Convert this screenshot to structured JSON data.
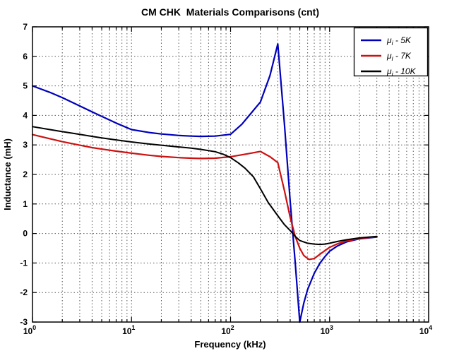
{
  "title": "CM CHK  Materials Comparisons (cnt)",
  "x_axis": {
    "label": "Frequency (kHz)",
    "scale": "log",
    "tick_exponents": [
      0,
      1,
      2,
      3,
      4
    ],
    "tick_base": "10"
  },
  "y_axis": {
    "label": "Inductance (mH)",
    "ticks": [
      -3,
      -2,
      -1,
      0,
      1,
      2,
      3,
      4,
      5,
      6,
      7
    ]
  },
  "legend": {
    "entries": [
      {
        "symbol": "μ",
        "subscript": "i",
        "suffix": " - 5K",
        "color": "#0000BB"
      },
      {
        "symbol": "μ",
        "subscript": "i",
        "suffix": " - 7K",
        "color": "#CC1111"
      },
      {
        "symbol": "μ",
        "subscript": "i",
        "suffix": " - 10K",
        "color": "#000000"
      }
    ]
  },
  "chart_data": {
    "type": "line",
    "title": "CM CHK  Materials Comparisons (cnt)",
    "xlabel": "Frequency (kHz)",
    "ylabel": "Inductance (mH)",
    "xscale": "log",
    "xlim": [
      1,
      10000
    ],
    "ylim": [
      -3,
      7
    ],
    "grid": true,
    "grid_style": "dotted",
    "legend_position": "top-right",
    "series": [
      {
        "name": "mu_i - 5K",
        "color": "#0000BB",
        "points": [
          [
            1,
            5.0
          ],
          [
            1.5,
            4.78
          ],
          [
            2,
            4.6
          ],
          [
            3,
            4.32
          ],
          [
            4,
            4.12
          ],
          [
            5,
            3.97
          ],
          [
            7,
            3.74
          ],
          [
            10,
            3.52
          ],
          [
            15,
            3.42
          ],
          [
            20,
            3.37
          ],
          [
            30,
            3.32
          ],
          [
            40,
            3.3
          ],
          [
            50,
            3.29
          ],
          [
            70,
            3.3
          ],
          [
            100,
            3.36
          ],
          [
            130,
            3.7
          ],
          [
            150,
            3.95
          ],
          [
            200,
            4.45
          ],
          [
            250,
            5.35
          ],
          [
            300,
            6.42
          ],
          [
            350,
            3.7
          ],
          [
            400,
            1.1
          ],
          [
            450,
            -1.0
          ],
          [
            500,
            -3.0
          ],
          [
            550,
            -2.35
          ],
          [
            600,
            -1.9
          ],
          [
            700,
            -1.35
          ],
          [
            800,
            -1.0
          ],
          [
            900,
            -0.78
          ],
          [
            1000,
            -0.6
          ],
          [
            1200,
            -0.42
          ],
          [
            1500,
            -0.28
          ],
          [
            2000,
            -0.18
          ],
          [
            3000,
            -0.12
          ]
        ]
      },
      {
        "name": "mu_i - 7K",
        "color": "#CC1111",
        "points": [
          [
            1,
            3.35
          ],
          [
            1.5,
            3.21
          ],
          [
            2,
            3.11
          ],
          [
            3,
            2.99
          ],
          [
            4,
            2.91
          ],
          [
            5,
            2.86
          ],
          [
            7,
            2.79
          ],
          [
            10,
            2.72
          ],
          [
            15,
            2.65
          ],
          [
            20,
            2.61
          ],
          [
            30,
            2.57
          ],
          [
            40,
            2.55
          ],
          [
            50,
            2.54
          ],
          [
            70,
            2.55
          ],
          [
            100,
            2.6
          ],
          [
            150,
            2.7
          ],
          [
            200,
            2.78
          ],
          [
            250,
            2.6
          ],
          [
            300,
            2.4
          ],
          [
            350,
            1.45
          ],
          [
            400,
            0.55
          ],
          [
            450,
            -0.1
          ],
          [
            500,
            -0.5
          ],
          [
            550,
            -0.75
          ],
          [
            620,
            -0.88
          ],
          [
            700,
            -0.85
          ],
          [
            800,
            -0.7
          ],
          [
            1000,
            -0.47
          ],
          [
            1200,
            -0.35
          ],
          [
            1500,
            -0.25
          ],
          [
            2000,
            -0.17
          ],
          [
            3000,
            -0.11
          ]
        ]
      },
      {
        "name": "mu_i - 10K",
        "color": "#000000",
        "points": [
          [
            1,
            3.62
          ],
          [
            1.5,
            3.52
          ],
          [
            2,
            3.45
          ],
          [
            3,
            3.36
          ],
          [
            4,
            3.29
          ],
          [
            5,
            3.24
          ],
          [
            7,
            3.17
          ],
          [
            10,
            3.1
          ],
          [
            15,
            3.03
          ],
          [
            20,
            2.99
          ],
          [
            30,
            2.93
          ],
          [
            40,
            2.89
          ],
          [
            50,
            2.85
          ],
          [
            70,
            2.77
          ],
          [
            85,
            2.68
          ],
          [
            100,
            2.57
          ],
          [
            120,
            2.39
          ],
          [
            140,
            2.21
          ],
          [
            170,
            1.92
          ],
          [
            200,
            1.52
          ],
          [
            240,
            1.05
          ],
          [
            300,
            0.6
          ],
          [
            350,
            0.3
          ],
          [
            400,
            0.1
          ],
          [
            450,
            -0.1
          ],
          [
            500,
            -0.24
          ],
          [
            600,
            -0.33
          ],
          [
            700,
            -0.36
          ],
          [
            800,
            -0.37
          ],
          [
            900,
            -0.36
          ],
          [
            1000,
            -0.33
          ],
          [
            1200,
            -0.27
          ],
          [
            1500,
            -0.21
          ],
          [
            2000,
            -0.15
          ],
          [
            3000,
            -0.1
          ]
        ]
      }
    ]
  }
}
